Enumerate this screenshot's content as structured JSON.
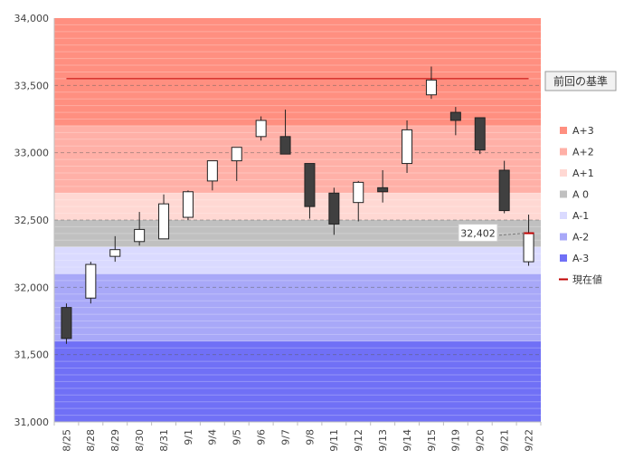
{
  "chart_data": {
    "type": "candlestick",
    "title": "",
    "xlabel": "",
    "ylabel": "",
    "ylim": [
      31000,
      34000
    ],
    "y_ticks": [
      31000,
      31500,
      32000,
      32500,
      33000,
      33500,
      34000
    ],
    "y_tick_labels": [
      "31,000",
      "31,500",
      "32,000",
      "32,500",
      "33,000",
      "33,500",
      "34,000"
    ],
    "categories": [
      "8/25",
      "8/28",
      "8/29",
      "8/30",
      "8/31",
      "9/1",
      "9/4",
      "9/5",
      "9/6",
      "9/7",
      "9/8",
      "9/11",
      "9/12",
      "9/13",
      "9/14",
      "9/15",
      "9/19",
      "9/20",
      "9/21",
      "9/22"
    ],
    "candles": [
      {
        "date": "8/25",
        "open": 31850,
        "high": 31880,
        "low": 31580,
        "close": 31620
      },
      {
        "date": "8/28",
        "open": 31920,
        "high": 32190,
        "low": 31880,
        "close": 32170
      },
      {
        "date": "8/29",
        "open": 32230,
        "high": 32380,
        "low": 32190,
        "close": 32280
      },
      {
        "date": "8/30",
        "open": 32340,
        "high": 32560,
        "low": 32310,
        "close": 32430
      },
      {
        "date": "8/31",
        "open": 32360,
        "high": 32690,
        "low": 32360,
        "close": 32620
      },
      {
        "date": "9/1",
        "open": 32520,
        "high": 32720,
        "low": 32500,
        "close": 32710
      },
      {
        "date": "9/4",
        "open": 32790,
        "high": 32940,
        "low": 32720,
        "close": 32940
      },
      {
        "date": "9/5",
        "open": 32940,
        "high": 33040,
        "low": 32790,
        "close": 33040
      },
      {
        "date": "9/6",
        "open": 33120,
        "high": 33270,
        "low": 33090,
        "close": 33240
      },
      {
        "date": "9/7",
        "open": 33120,
        "high": 33320,
        "low": 32990,
        "close": 32990
      },
      {
        "date": "9/8",
        "open": 32920,
        "high": 32920,
        "low": 32510,
        "close": 32600
      },
      {
        "date": "9/11",
        "open": 32700,
        "high": 32740,
        "low": 32390,
        "close": 32470
      },
      {
        "date": "9/12",
        "open": 32630,
        "high": 32790,
        "low": 32490,
        "close": 32780
      },
      {
        "date": "9/13",
        "open": 32740,
        "high": 32870,
        "low": 32630,
        "close": 32710
      },
      {
        "date": "9/14",
        "open": 32920,
        "high": 33240,
        "low": 32850,
        "close": 33170
      },
      {
        "date": "9/15",
        "open": 33430,
        "high": 33640,
        "low": 33400,
        "close": 33540
      },
      {
        "date": "9/19",
        "open": 33300,
        "high": 33340,
        "low": 33130,
        "close": 33240
      },
      {
        "date": "9/20",
        "open": 33260,
        "high": 33260,
        "low": 32990,
        "close": 33020
      },
      {
        "date": "9/21",
        "open": 32870,
        "high": 32940,
        "low": 32550,
        "close": 32570
      },
      {
        "date": "9/22",
        "open": 32190,
        "high": 32540,
        "low": 32160,
        "close": 32402
      }
    ],
    "bands": [
      {
        "name": "A+3",
        "from": 33200,
        "to": 34000,
        "color": "#ff8f80"
      },
      {
        "name": "A+2",
        "from": 32700,
        "to": 33200,
        "color": "#ffb0a7"
      },
      {
        "name": "A+1",
        "from": 32500,
        "to": 32700,
        "color": "#ffd8d3"
      },
      {
        "name": "A 0",
        "from": 32300,
        "to": 32500,
        "color": "#c0c0c0"
      },
      {
        "name": "A-1",
        "from": 32100,
        "to": 32300,
        "color": "#dadaff"
      },
      {
        "name": "A-2",
        "from": 31600,
        "to": 32100,
        "color": "#a8a8f8"
      },
      {
        "name": "A-3",
        "from": 31000,
        "to": 31600,
        "color": "#7070f6"
      }
    ],
    "shaded_columns": [
      {
        "from": "8/25",
        "to": "8/25"
      },
      {
        "from": "9/4",
        "to": "9/8"
      },
      {
        "from": "9/19",
        "to": "9/22"
      }
    ],
    "reference_line": {
      "label": "前回の基準",
      "value": 33550,
      "color": "#c00000"
    },
    "current_value": {
      "label": "32,402",
      "value": 32402,
      "date": "9/22"
    },
    "legend": [
      {
        "label": "A+3",
        "color": "#ff8f80",
        "kind": "box"
      },
      {
        "label": "A+2",
        "color": "#ffb0a7",
        "kind": "box"
      },
      {
        "label": "A+1",
        "color": "#ffd8d3",
        "kind": "box"
      },
      {
        "label": "A 0",
        "color": "#c0c0c0",
        "kind": "box"
      },
      {
        "label": "A-1",
        "color": "#dadaff",
        "kind": "box"
      },
      {
        "label": "A-2",
        "color": "#a8a8f8",
        "kind": "box"
      },
      {
        "label": "A-3",
        "color": "#7070f6",
        "kind": "box"
      },
      {
        "label": "現在値",
        "color": "#c00000",
        "kind": "line"
      }
    ],
    "legend_position": "right"
  }
}
